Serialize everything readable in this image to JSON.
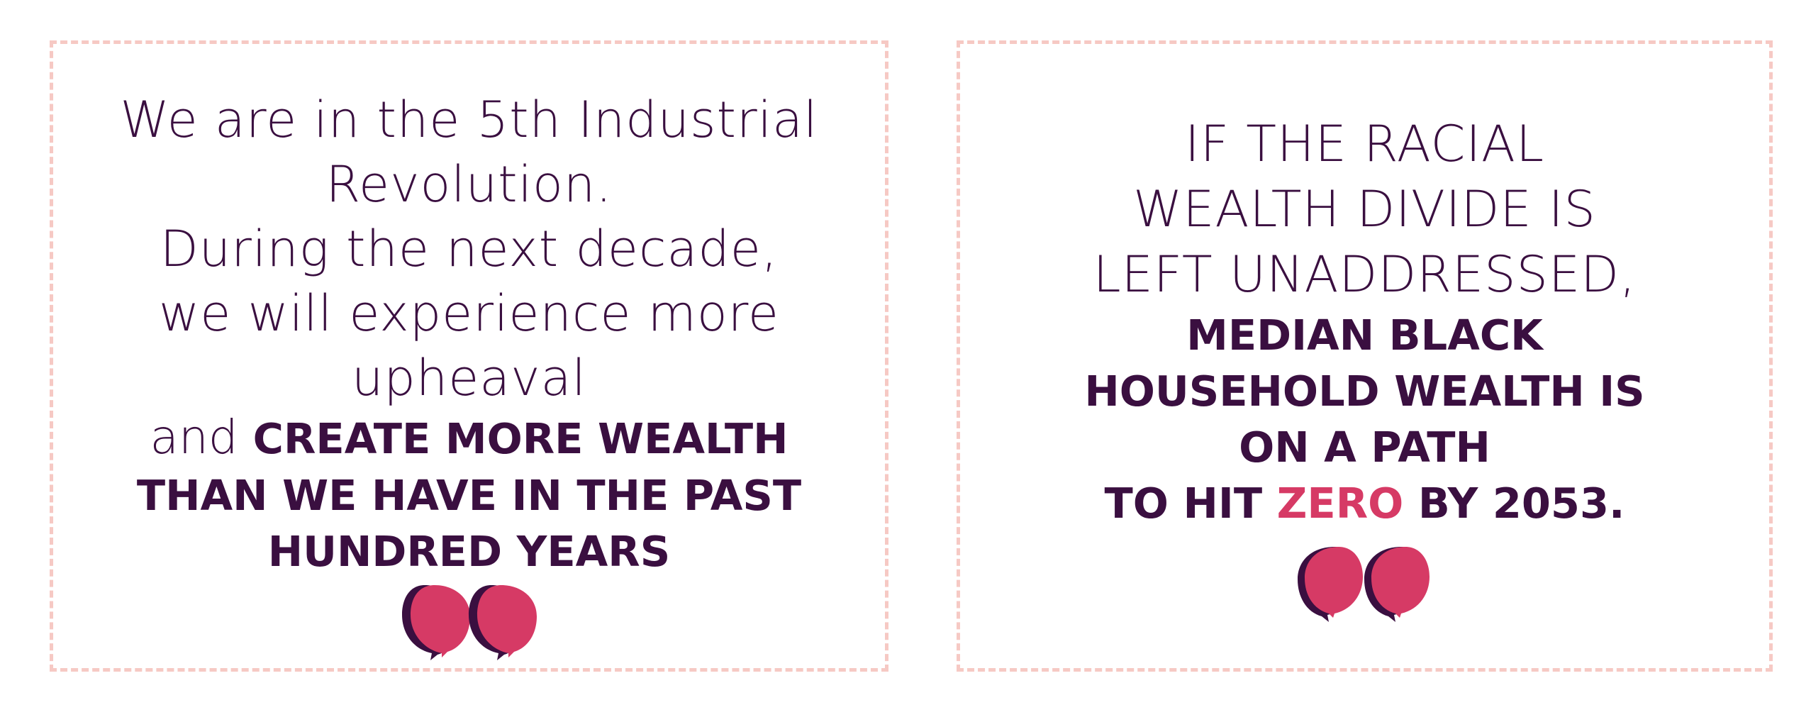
{
  "left_card": {
    "lines": [
      "We are in the 5th Industrial",
      "Revolution.",
      "During the next decade,",
      "we will experience more",
      "upheaval"
    ],
    "mixed_regular": "and ",
    "mixed_bold": "CREATE MORE WEALTH",
    "bold_lines": [
      "THAN WE HAVE IN THE PAST",
      "HUNDRED YEARS"
    ],
    "icon": "quote-icon"
  },
  "right_card": {
    "caps_lines": [
      "IF THE RACIAL",
      "WEALTH DIVIDE IS",
      "LEFT UNADDRESSED,"
    ],
    "bold_lines": [
      "MEDIAN BLACK",
      "HOUSEHOLD WEALTH IS",
      "ON A PATH"
    ],
    "last_line": {
      "before": "TO HIT ",
      "highlight": "ZERO",
      "after": " BY 2053."
    },
    "icon": "quote-icon"
  },
  "colors": {
    "text": "#3a0f40",
    "accent": "#d63a65",
    "border": "#f6c9c4",
    "quote_shadow": "#3a0f40"
  }
}
